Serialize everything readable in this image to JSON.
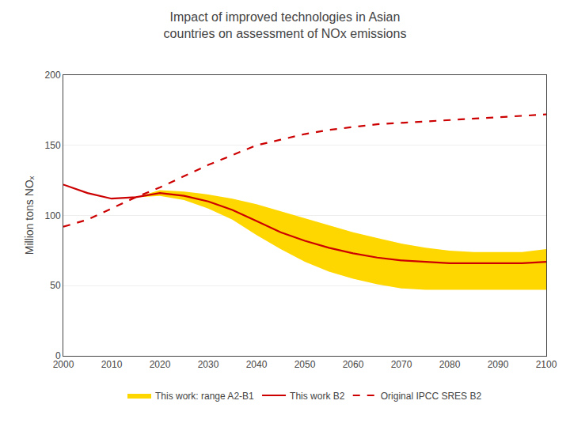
{
  "chart_data": {
    "type": "line",
    "title": "Impact of improved technologies in Asian\ncountries on assessment of NOx emissions",
    "ylabel": "Million tons NOₓ",
    "x": [
      2000,
      2005,
      2010,
      2015,
      2020,
      2025,
      2030,
      2035,
      2040,
      2045,
      2050,
      2055,
      2060,
      2065,
      2070,
      2075,
      2080,
      2085,
      2090,
      2095,
      2100
    ],
    "series": [
      {
        "name": "This work: range A2-B1",
        "type": "band",
        "color": "#FFD700",
        "lower": [
          122,
          116,
          112,
          113,
          114,
          111,
          105,
          97,
          86,
          76,
          67,
          60,
          55,
          51,
          48,
          47,
          47,
          47,
          47,
          47,
          47
        ],
        "upper": [
          122,
          116,
          112,
          113,
          118,
          117,
          115,
          112,
          108,
          103,
          98,
          93,
          88,
          84,
          80,
          77,
          75,
          74,
          74,
          74,
          76
        ]
      },
      {
        "name": "This work B2",
        "type": "line",
        "color": "#CC0000",
        "line_style": "solid",
        "values": [
          122,
          116,
          112,
          113,
          116,
          114,
          110,
          104,
          96,
          88,
          82,
          77,
          73,
          70,
          68,
          67,
          66,
          66,
          66,
          66,
          67
        ]
      },
      {
        "name": "Original IPCC SRES B2",
        "type": "line",
        "color": "#CC0000",
        "line_style": "dashed",
        "values": [
          92,
          97,
          105,
          113,
          120,
          128,
          136,
          143,
          150,
          154,
          158,
          161,
          163,
          165,
          166,
          167,
          168,
          169,
          170,
          171,
          172
        ]
      }
    ],
    "xlim": [
      2000,
      2100
    ],
    "xticks": [
      2000,
      2010,
      2020,
      2030,
      2040,
      2050,
      2060,
      2070,
      2080,
      2090,
      2100
    ],
    "ylim": [
      0,
      200
    ],
    "yticks": [
      0,
      50,
      100,
      150,
      200
    ],
    "grid": "y",
    "legend": "bottom"
  }
}
